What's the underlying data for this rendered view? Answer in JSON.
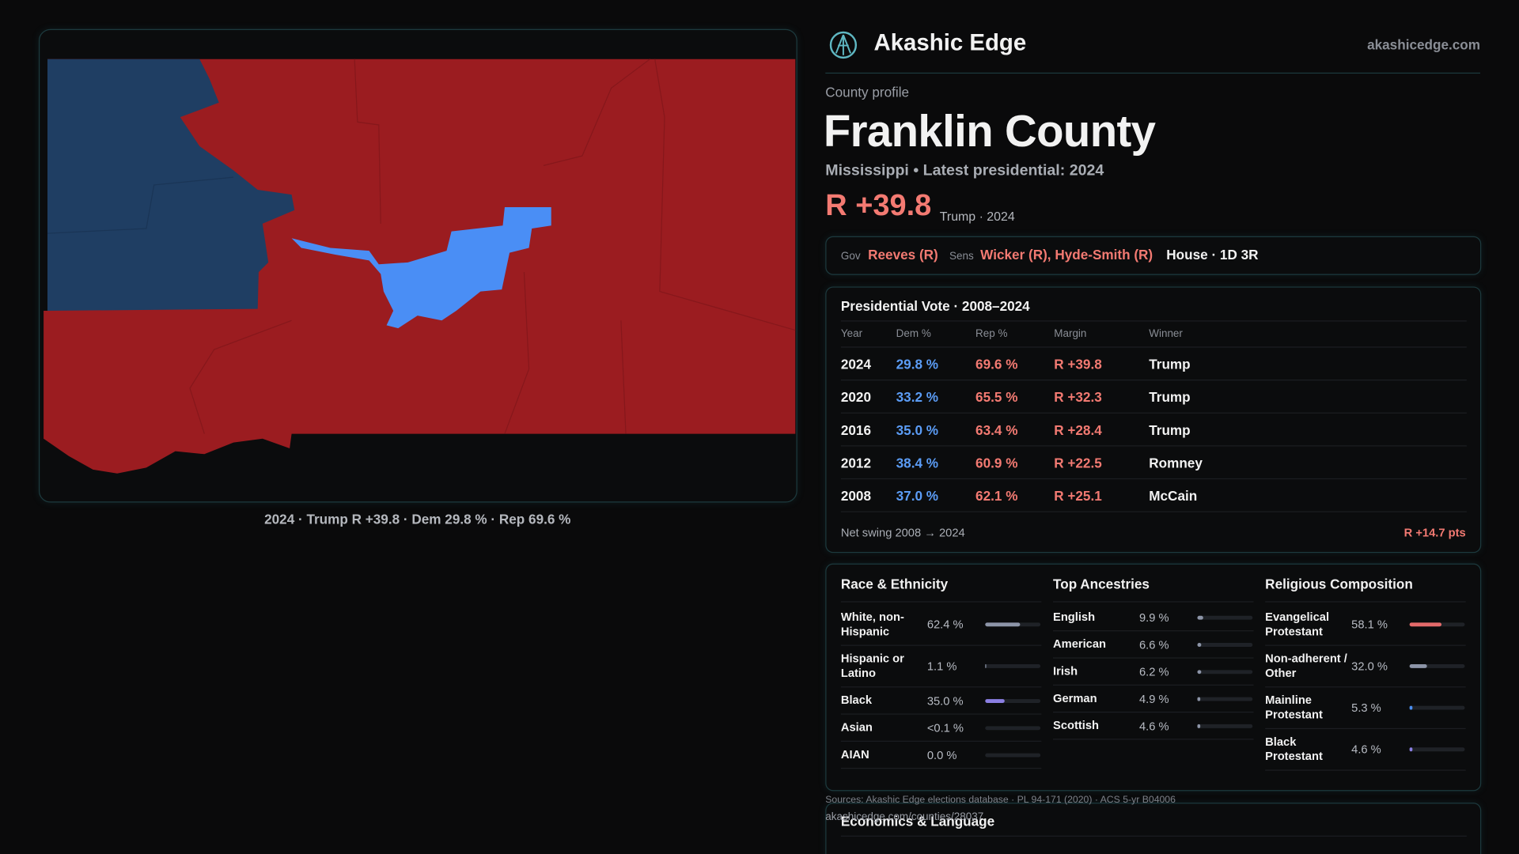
{
  "header": {
    "brand": "Akashic Edge",
    "site": "akashicedge.com"
  },
  "profile": {
    "kicker": "County profile",
    "name": "Franklin County",
    "subtitle": "Mississippi • Latest presidential: 2024",
    "margin": "R +39.8",
    "margin_note": "Trump · 2024"
  },
  "officials": {
    "gov_label": "Gov",
    "gov": "Reeves (R)",
    "sens_label": "Sens",
    "sens": "Wicker (R), Hyde-Smith (R)",
    "house": "House · 1D 3R"
  },
  "map": {
    "caption": "2024 · Trump R +39.8 · Dem 29.8 % · Rep 69.6 %"
  },
  "presidential": {
    "title": "Presidential Vote · 2008–2024",
    "columns": [
      "Year",
      "Dem %",
      "Rep %",
      "Margin",
      "Winner"
    ],
    "rows": [
      [
        "2024",
        "29.8 %",
        "69.6 %",
        "R +39.8",
        "Trump"
      ],
      [
        "2020",
        "33.2 %",
        "65.5 %",
        "R +32.3",
        "Trump"
      ],
      [
        "2016",
        "35.0 %",
        "63.4 %",
        "R +28.4",
        "Trump"
      ],
      [
        "2012",
        "38.4 %",
        "60.9 %",
        "R +22.5",
        "Romney"
      ],
      [
        "2008",
        "37.0 %",
        "62.1 %",
        "R +25.1",
        "McCain"
      ]
    ],
    "swing_label": "Net swing 2008 → 2024",
    "swing_value": "R +14.7 pts"
  },
  "demographics": [
    {
      "title": "Race & Ethnicity",
      "rows": [
        {
          "label": "White, non-Hispanic",
          "value": 62.4,
          "value_label": "62.4 %",
          "color": "#8d95a8"
        },
        {
          "label": "Hispanic or Latino",
          "value": 1.1,
          "value_label": "1.1 %",
          "color": "#8d95a8"
        },
        {
          "label": "Black",
          "value": 35.0,
          "value_label": "35.0 %",
          "color": "#8b7fe3"
        },
        {
          "label": "Asian",
          "value": 0.05,
          "value_label": "<0.1 %",
          "color": "#8d95a8"
        },
        {
          "label": "AIAN",
          "value": 0.0,
          "value_label": "0.0 %",
          "color": "#8d95a8"
        }
      ]
    },
    {
      "title": "Top Ancestries",
      "rows": [
        {
          "label": "English",
          "value": 9.9,
          "value_label": "9.9 %",
          "color": "#8d95a8"
        },
        {
          "label": "American",
          "value": 6.6,
          "value_label": "6.6 %",
          "color": "#8d95a8"
        },
        {
          "label": "Irish",
          "value": 6.2,
          "value_label": "6.2 %",
          "color": "#8d95a8"
        },
        {
          "label": "German",
          "value": 4.9,
          "value_label": "4.9 %",
          "color": "#8d95a8"
        },
        {
          "label": "Scottish",
          "value": 4.6,
          "value_label": "4.6 %",
          "color": "#8d95a8"
        }
      ]
    },
    {
      "title": "Religious Composition",
      "rows": [
        {
          "label": "Evangelical Protestant",
          "value": 58.1,
          "value_label": "58.1 %",
          "color": "#e46a6a"
        },
        {
          "label": "Non-adherent / Other",
          "value": 32.0,
          "value_label": "32.0 %",
          "color": "#8d95a8"
        },
        {
          "label": "Mainline Protestant",
          "value": 5.3,
          "value_label": "5.3 %",
          "color": "#4a8ef0"
        },
        {
          "label": "Black Protestant",
          "value": 4.6,
          "value_label": "4.6 %",
          "color": "#8b7fe3"
        }
      ]
    }
  ],
  "footer": {
    "sources": "Sources: Akashic Edge elections database · PL 94-171 (2020) · ACS 5-yr B04006",
    "url": "akashicedge.com/counties/28037"
  },
  "economics": {
    "title": "Economics & Language"
  }
}
